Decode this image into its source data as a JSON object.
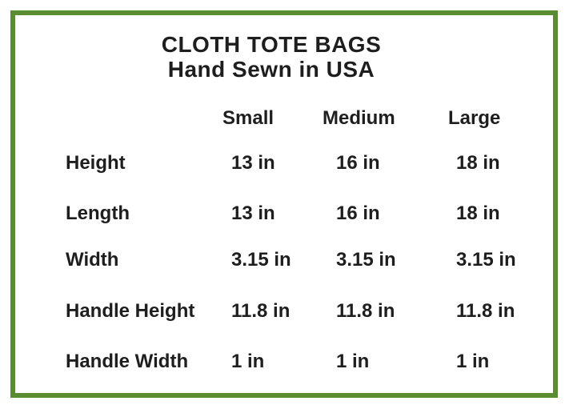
{
  "chart_data": {
    "type": "table",
    "title": "CLOTH TOTE BAGS",
    "subtitle": "Hand Sewn in USA",
    "columns": [
      "Small",
      "Medium",
      "Large"
    ],
    "rows": [
      {
        "label": "Height",
        "values": [
          "13 in",
          "16 in",
          "18 in"
        ]
      },
      {
        "label": "Length",
        "values": [
          "13 in",
          "16 in",
          "18 in"
        ]
      },
      {
        "label": "Width",
        "values": [
          "3.15 in",
          "3.15 in",
          "3.15 in"
        ]
      },
      {
        "label": "Handle Height",
        "values": [
          "11.8 in",
          "11.8 in",
          "11.8 in"
        ]
      },
      {
        "label": "Handle Width",
        "values": [
          "1 in",
          "1 in",
          "1 in"
        ]
      }
    ],
    "layout_hints": {
      "grid": false,
      "unit": "inches",
      "row_label_column": true
    }
  },
  "colors": {
    "border_green": "#5a8c32",
    "text": "#1e1e1e",
    "background": "#ffffff"
  }
}
